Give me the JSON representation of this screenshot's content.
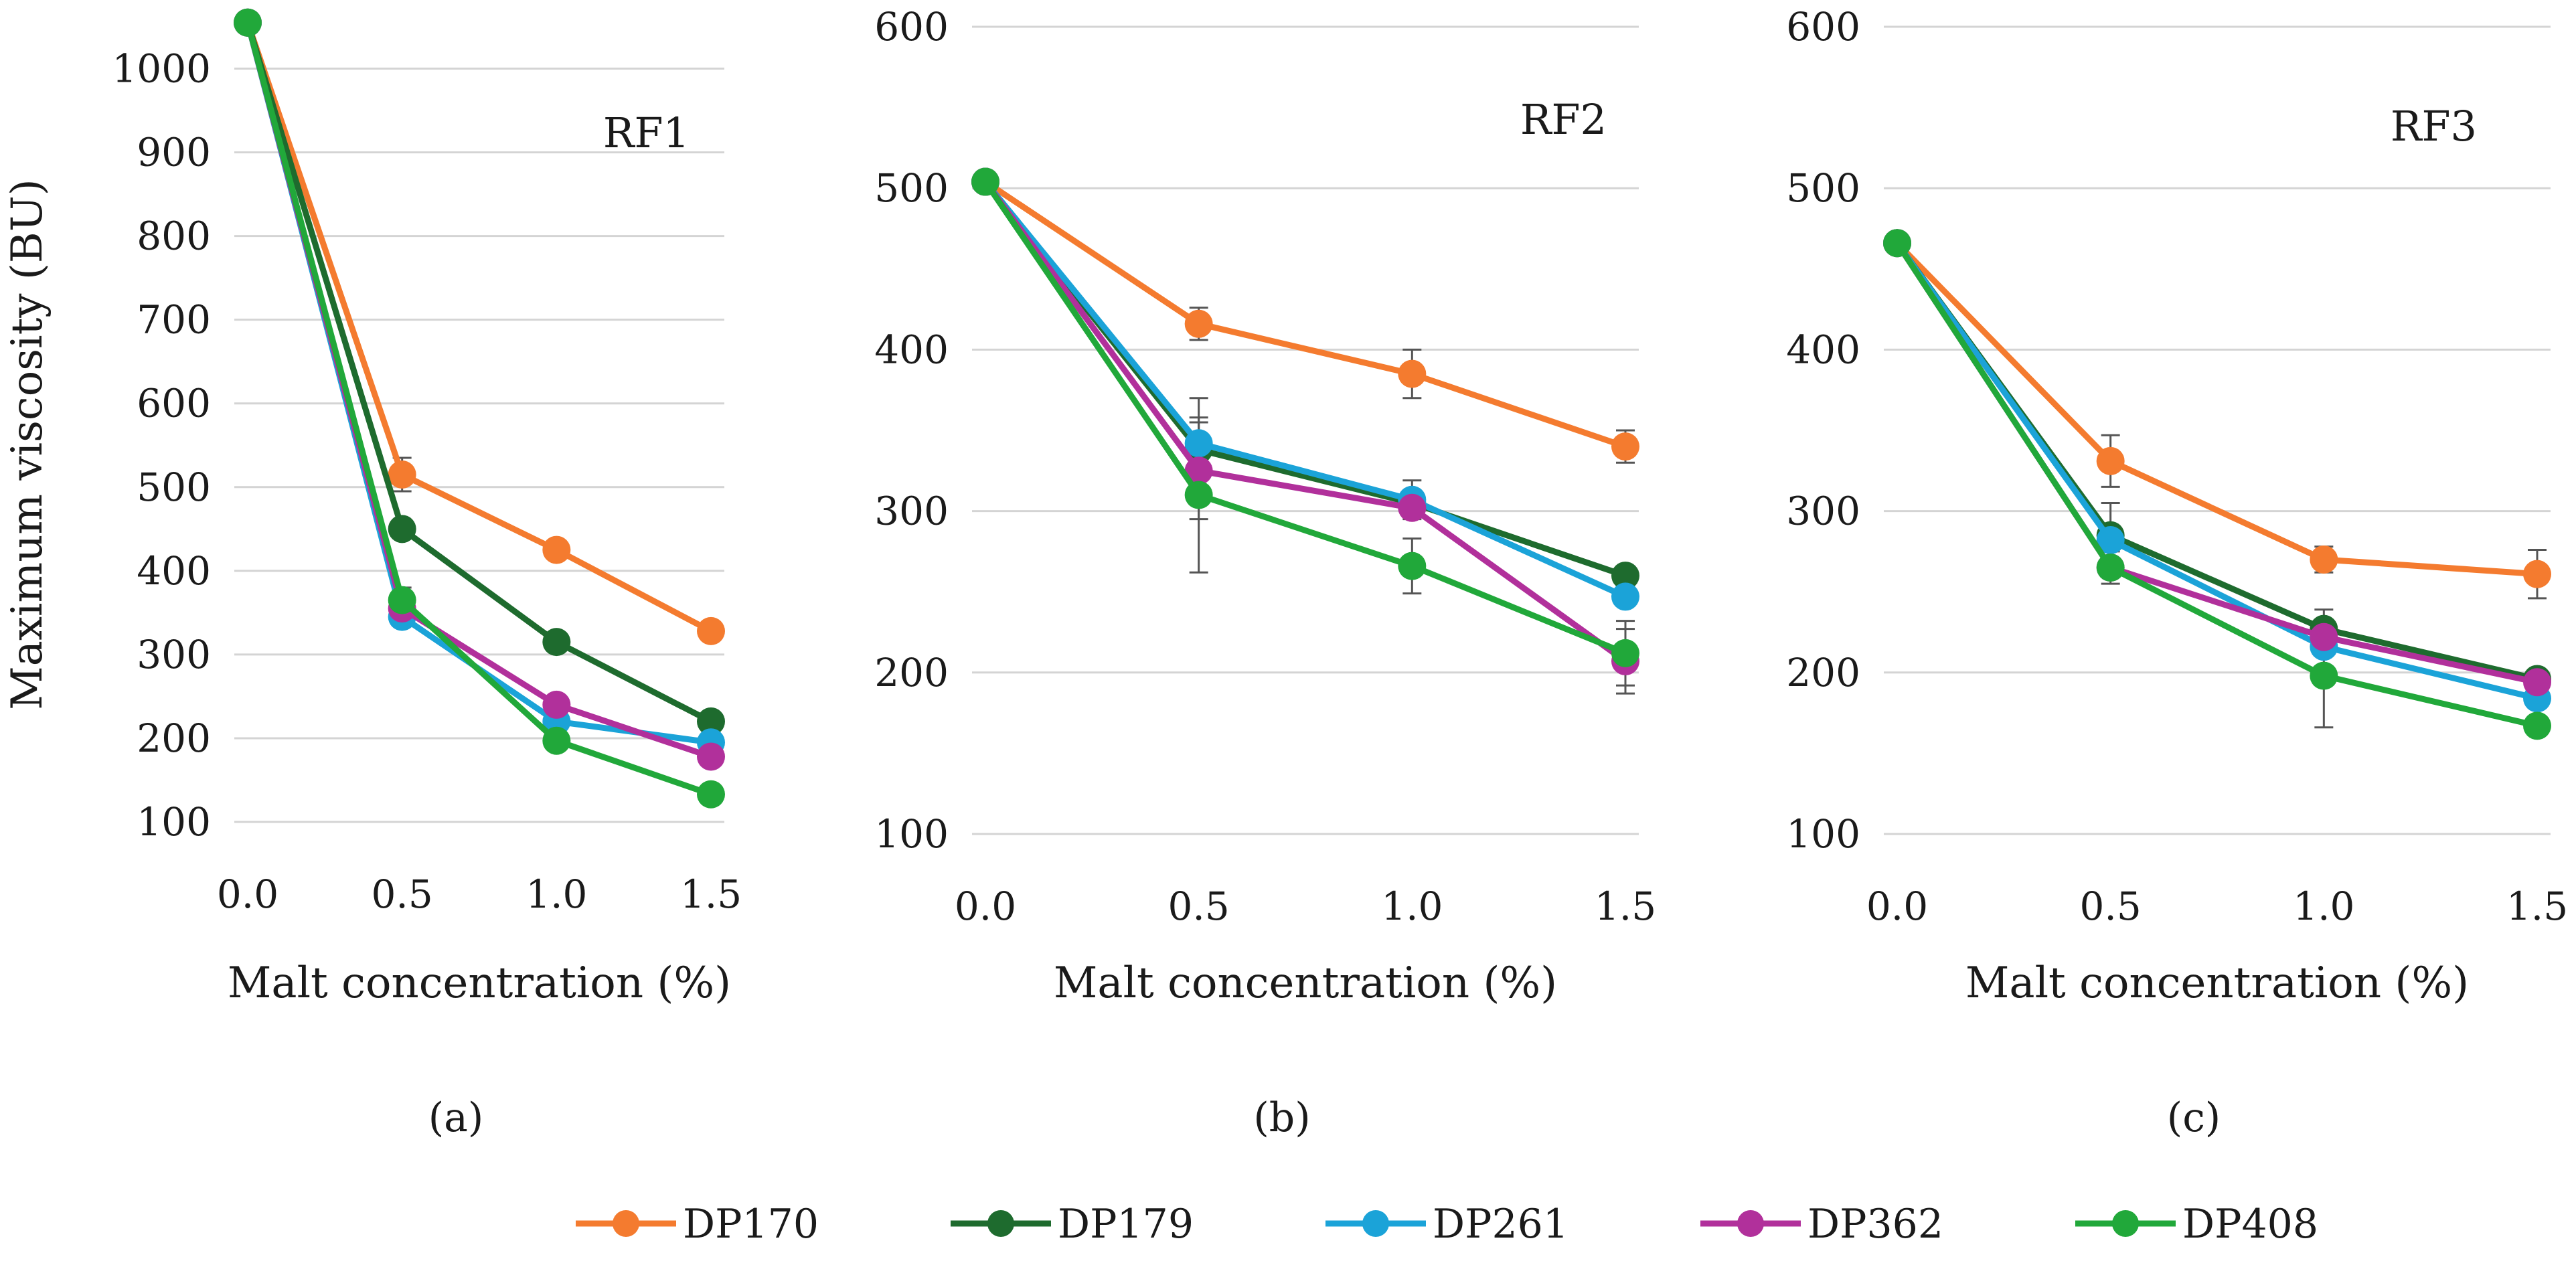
{
  "chart_data": [
    {
      "type": "line",
      "panel": "(a)",
      "series_label": "RF1",
      "xlabel": "Malt concentration (%)",
      "ylabel": "Maximum viscosity (BU)",
      "ylim": [
        100,
        1050
      ],
      "yticks": [
        100,
        200,
        300,
        400,
        500,
        600,
        700,
        800,
        900,
        1000
      ],
      "xticks": [
        "0.0",
        "0.5",
        "1.0",
        "1.5"
      ],
      "x": [
        0.0,
        0.5,
        1.0,
        1.5
      ],
      "series": [
        {
          "name": "DP170",
          "values": [
            1055,
            515,
            425,
            328
          ],
          "errors": [
            0,
            20,
            0,
            0
          ]
        },
        {
          "name": "DP179",
          "values": [
            1055,
            450,
            315,
            220
          ],
          "errors": [
            0,
            0,
            0,
            0
          ]
        },
        {
          "name": "DP261",
          "values": [
            1055,
            345,
            220,
            195
          ],
          "errors": [
            0,
            0,
            0,
            0
          ]
        },
        {
          "name": "DP362",
          "values": [
            1055,
            355,
            240,
            178
          ],
          "errors": [
            0,
            0,
            0,
            0
          ]
        },
        {
          "name": "DP408",
          "values": [
            1055,
            365,
            197,
            133
          ],
          "errors": [
            0,
            15,
            0,
            0
          ]
        }
      ]
    },
    {
      "type": "line",
      "panel": "(b)",
      "series_label": "RF2",
      "xlabel": "Malt concentration (%)",
      "ylabel": "",
      "ylim": [
        100,
        600
      ],
      "yticks": [
        100,
        200,
        300,
        400,
        500,
        600
      ],
      "xticks": [
        "0.0",
        "0.5",
        "1.0",
        "1.5"
      ],
      "x": [
        0.0,
        0.5,
        1.0,
        1.5
      ],
      "series": [
        {
          "name": "DP170",
          "values": [
            504,
            416,
            385,
            340
          ],
          "errors": [
            0,
            10,
            15,
            10
          ]
        },
        {
          "name": "DP179",
          "values": [
            504,
            338,
            305,
            260
          ],
          "errors": [
            0,
            0,
            0,
            0
          ]
        },
        {
          "name": "DP261",
          "values": [
            504,
            342,
            307,
            247
          ],
          "errors": [
            0,
            28,
            12,
            0
          ]
        },
        {
          "name": "DP362",
          "values": [
            504,
            325,
            302,
            207
          ],
          "errors": [
            0,
            30,
            0,
            20
          ]
        },
        {
          "name": "DP408",
          "values": [
            504,
            310,
            266,
            212
          ],
          "errors": [
            0,
            48,
            17,
            20
          ]
        }
      ]
    },
    {
      "type": "line",
      "panel": "(c)",
      "series_label": "RF3",
      "xlabel": "Malt concentration (%)",
      "ylabel": "",
      "ylim": [
        100,
        600
      ],
      "yticks": [
        100,
        200,
        300,
        400,
        500,
        600
      ],
      "xticks": [
        "0.0",
        "0.5",
        "1.0",
        "1.5"
      ],
      "x": [
        0.0,
        0.5,
        1.0,
        1.5
      ],
      "series": [
        {
          "name": "DP170",
          "values": [
            466,
            331,
            270,
            261
          ],
          "errors": [
            0,
            16,
            8,
            15
          ]
        },
        {
          "name": "DP179",
          "values": [
            466,
            285,
            227,
            196
          ],
          "errors": [
            0,
            20,
            12,
            0
          ]
        },
        {
          "name": "DP261",
          "values": [
            466,
            282,
            216,
            184
          ],
          "errors": [
            0,
            0,
            0,
            0
          ]
        },
        {
          "name": "DP362",
          "values": [
            466,
            265,
            222,
            194
          ],
          "errors": [
            0,
            0,
            0,
            0
          ]
        },
        {
          "name": "DP408",
          "values": [
            466,
            265,
            198,
            167
          ],
          "errors": [
            0,
            10,
            32,
            0
          ]
        }
      ]
    }
  ],
  "legend": {
    "position": "bottom",
    "items": [
      {
        "name": "DP170",
        "color": "#F47B2F"
      },
      {
        "name": "DP179",
        "color": "#1E6B2E"
      },
      {
        "name": "DP261",
        "color": "#1BA3D8"
      },
      {
        "name": "DP362",
        "color": "#B1309B"
      },
      {
        "name": "DP408",
        "color": "#21A83A"
      }
    ]
  }
}
